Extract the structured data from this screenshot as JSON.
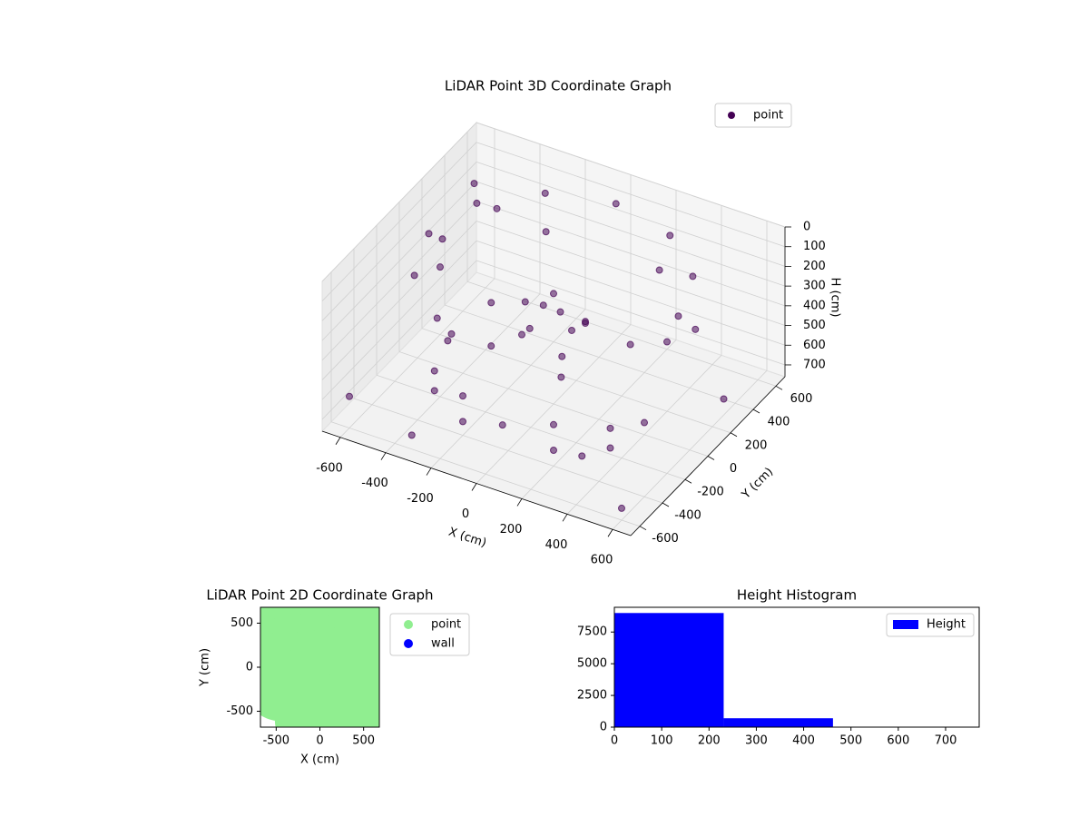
{
  "chart_data": [
    {
      "type": "scatter3d",
      "title": "LiDAR Point 3D Coordinate Graph",
      "xlabel": "X (cm)",
      "ylabel": "Y (cm)",
      "zlabel": "H (cm)",
      "xlim": [
        -680,
        680
      ],
      "ylim": [
        -680,
        680
      ],
      "zlim": [
        760,
        0
      ],
      "xticks": [
        -600,
        -400,
        -200,
        0,
        200,
        400,
        600
      ],
      "yticks": [
        -600,
        -400,
        -200,
        0,
        200,
        400,
        600
      ],
      "zticks": [
        0,
        100,
        200,
        300,
        400,
        500,
        600,
        700
      ],
      "grid": true,
      "legend": "upper right",
      "series": [
        {
          "name": "point",
          "color": "#440154",
          "x": [
            550,
            476,
            275,
            0,
            -275,
            -476,
            -550,
            -476,
            -275,
            0,
            275,
            476,
            500,
            250,
            -250,
            -500,
            -250,
            250,
            0,
            50,
            -60,
            100,
            -100,
            20,
            -30,
            150,
            -150,
            400,
            400,
            200,
            200,
            0,
            -200,
            -200,
            -400,
            -400,
            -450,
            -400,
            450,
            300,
            -650,
            -500,
            -600,
            -300,
            600,
            650,
            -640,
            300
          ],
          "y": [
            0,
            275,
            476,
            550,
            476,
            275,
            0,
            -275,
            -476,
            -550,
            -476,
            -275,
            0,
            433,
            433,
            0,
            -433,
            -433,
            0,
            -40,
            30,
            80,
            -80,
            120,
            -150,
            -20,
            50,
            -300,
            -300,
            -400,
            -400,
            -450,
            -400,
            -400,
            -250,
            -250,
            0,
            250,
            -100,
            -350,
            600,
            500,
            -600,
            -650,
            -600,
            200,
            300,
            650
          ],
          "z": [
            100,
            90,
            80,
            70,
            80,
            90,
            110,
            130,
            150,
            140,
            130,
            110,
            250,
            240,
            240,
            260,
            280,
            270,
            200,
            250,
            300,
            350,
            400,
            450,
            300,
            280,
            330,
            550,
            650,
            550,
            680,
            600,
            560,
            690,
            600,
            700,
            580,
            550,
            620,
            700,
            250,
            260,
            600,
            650,
            700,
            600,
            350,
            650
          ]
        }
      ]
    },
    {
      "type": "scatter",
      "title": "LiDAR Point 2D Coordinate Graph",
      "xlabel": "X (cm)",
      "ylabel": "Y (cm)",
      "xlim": [
        -680,
        680
      ],
      "ylim": [
        -680,
        680
      ],
      "xticks": [
        -500,
        0,
        500
      ],
      "yticks": [
        -500,
        0,
        500
      ],
      "legend": "outside right",
      "series": [
        {
          "name": "point",
          "color": "#90ee90",
          "x": [
            -300,
            0,
            300,
            500,
            -450,
            -200,
            100,
            400,
            600,
            -550,
            -300,
            0,
            250,
            -600,
            -400,
            -150,
            100,
            550,
            -450,
            -200,
            100,
            350,
            600,
            -150,
            100,
            350,
            600,
            -100,
            150,
            400,
            600,
            200,
            450
          ],
          "y": [
            600,
            650,
            600,
            500,
            400,
            400,
            400,
            350,
            400,
            200,
            200,
            200,
            200,
            0,
            0,
            0,
            0,
            0,
            -200,
            -200,
            -200,
            -200,
            -200,
            -400,
            -400,
            -400,
            -400,
            -600,
            -600,
            -600,
            -600,
            100,
            150
          ]
        },
        {
          "name": "wall",
          "color": "#0000ff",
          "x": [],
          "y": []
        }
      ]
    },
    {
      "type": "histogram",
      "title": "Height Histogram",
      "name": "Height",
      "color": "#0000ff",
      "bins": [
        0,
        231,
        462,
        693
      ],
      "counts": [
        9000,
        700,
        10
      ],
      "xlim": [
        0,
        771
      ],
      "ylim": [
        0,
        9450
      ],
      "xticks": [
        0,
        100,
        200,
        300,
        400,
        500,
        600,
        700
      ],
      "yticks": [
        0,
        2500,
        5000,
        7500
      ],
      "legend": "upper right"
    }
  ]
}
